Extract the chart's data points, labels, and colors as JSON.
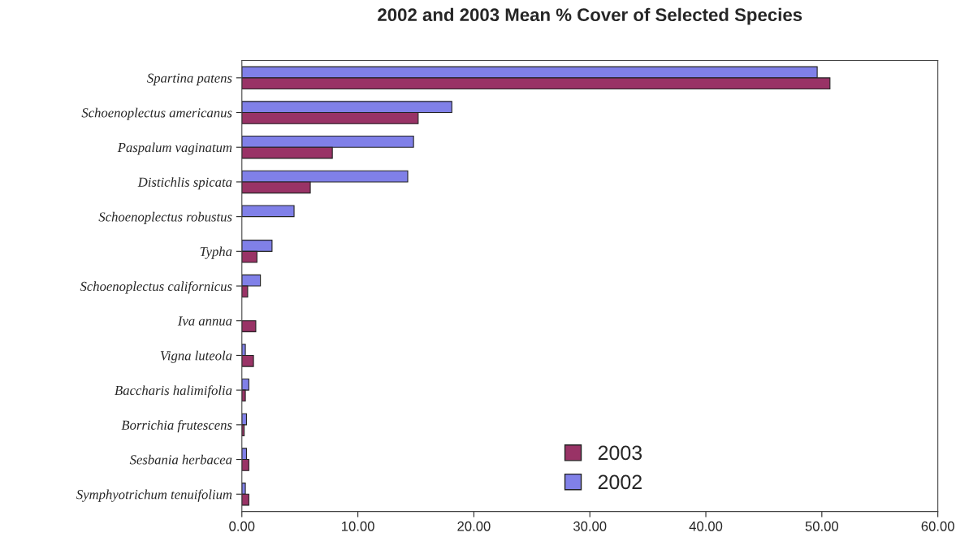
{
  "chart_data": {
    "type": "bar",
    "orientation": "horizontal",
    "title": "2002 and 2003 Mean % Cover of Selected Species",
    "categories": [
      "Spartina patens",
      "Schoenoplectus americanus",
      "Paspalum vaginatum",
      "Distichlis spicata",
      "Schoenoplectus robustus",
      "Typha",
      "Schoenoplectus californicus",
      "Iva annua",
      "Vigna luteola",
      "Baccharis halimifolia",
      "Borrichia frutescens",
      "Sesbania herbacea",
      "Symphyotrichum tenuifolium"
    ],
    "series": [
      {
        "name": "2002",
        "color": "#8080e8",
        "values": [
          49.6,
          18.1,
          14.8,
          14.3,
          4.5,
          2.6,
          1.6,
          null,
          0.3,
          0.6,
          0.4,
          0.4,
          0.3
        ]
      },
      {
        "name": "2003",
        "color": "#993366",
        "values": [
          50.7,
          15.2,
          7.8,
          5.9,
          null,
          1.3,
          0.5,
          1.2,
          1.0,
          0.3,
          0.2,
          0.6,
          0.6
        ]
      }
    ],
    "xlim": [
      0,
      60
    ],
    "xticks": [
      {
        "value": 0,
        "label": "0.00"
      },
      {
        "value": 10,
        "label": "10.00"
      },
      {
        "value": 20,
        "label": "20.00"
      },
      {
        "value": 30,
        "label": "30.00"
      },
      {
        "value": 40,
        "label": "40.00"
      },
      {
        "value": 50,
        "label": "50.00"
      },
      {
        "value": 60,
        "label": "60.00"
      }
    ],
    "grid": false,
    "legend": "bottom"
  }
}
